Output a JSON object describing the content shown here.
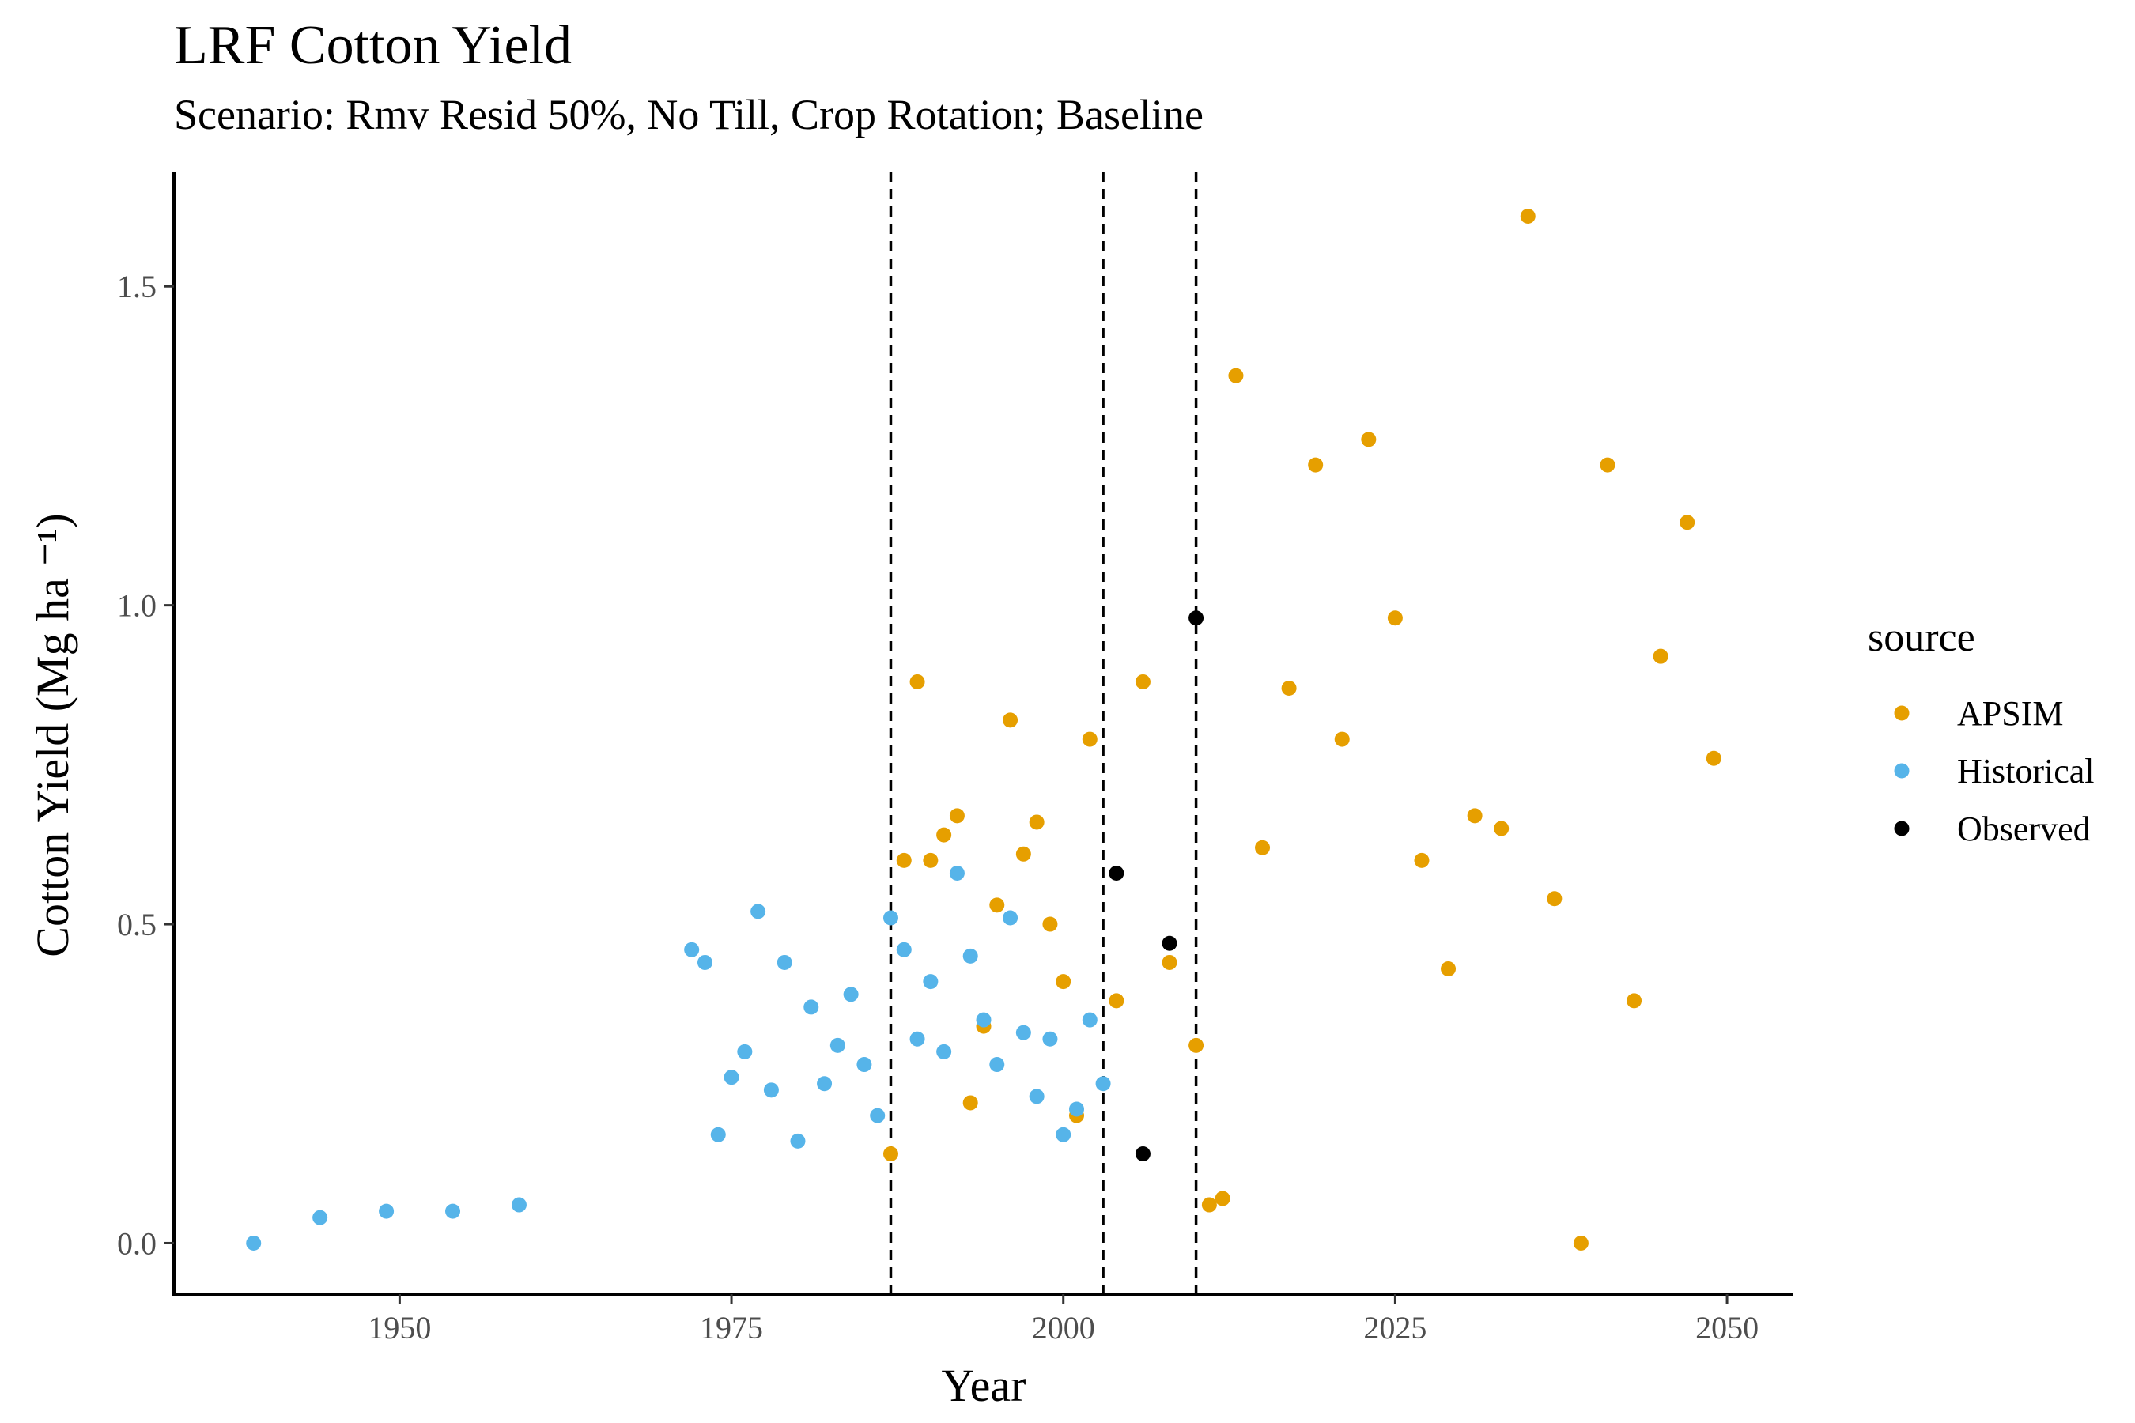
{
  "chart_data": {
    "type": "scatter",
    "title": "LRF Cotton Yield",
    "subtitle": "Scenario: Rmv Resid 50%, No Till, Crop Rotation; Baseline",
    "xlabel": "Year",
    "ylabel": "Cotton Yield (Mg ha ⁻¹)",
    "xlim": [
      1933,
      2055
    ],
    "ylim": [
      -0.08,
      1.68
    ],
    "x_ticks": [
      1950,
      1975,
      2000,
      2025,
      2050
    ],
    "y_ticks": [
      0.0,
      0.5,
      1.0,
      1.5
    ],
    "x_tick_labels": [
      "1950",
      "1975",
      "2000",
      "2025",
      "2050"
    ],
    "y_tick_labels": [
      "0.0",
      "0.5",
      "1.0",
      "1.5"
    ],
    "vlines": [
      1987,
      2003,
      2010
    ],
    "grid": false,
    "legend": {
      "title": "source",
      "position": "right"
    },
    "series": [
      {
        "name": "APSIM",
        "color": "#E69F00",
        "points": [
          [
            1987,
            0.14
          ],
          [
            1988,
            0.6
          ],
          [
            1989,
            0.88
          ],
          [
            1990,
            0.6
          ],
          [
            1991,
            0.64
          ],
          [
            1992,
            0.67
          ],
          [
            1993,
            0.22
          ],
          [
            1994,
            0.34
          ],
          [
            1995,
            0.53
          ],
          [
            1996,
            0.82
          ],
          [
            1997,
            0.61
          ],
          [
            1998,
            0.66
          ],
          [
            1999,
            0.5
          ],
          [
            2000,
            0.41
          ],
          [
            2001,
            0.2
          ],
          [
            2002,
            0.79
          ],
          [
            2004,
            0.38
          ],
          [
            2006,
            0.88
          ],
          [
            2008,
            0.44
          ],
          [
            2010,
            0.31
          ],
          [
            2011,
            0.06
          ],
          [
            2012,
            0.07
          ],
          [
            2013,
            1.36
          ],
          [
            2015,
            0.62
          ],
          [
            2017,
            0.87
          ],
          [
            2019,
            1.22
          ],
          [
            2021,
            0.79
          ],
          [
            2023,
            1.26
          ],
          [
            2025,
            0.98
          ],
          [
            2027,
            0.6
          ],
          [
            2029,
            0.43
          ],
          [
            2031,
            0.67
          ],
          [
            2033,
            0.65
          ],
          [
            2035,
            1.61
          ],
          [
            2037,
            0.54
          ],
          [
            2039,
            0.0
          ],
          [
            2041,
            1.22
          ],
          [
            2043,
            0.38
          ],
          [
            2045,
            0.92
          ],
          [
            2047,
            1.13
          ],
          [
            2049,
            0.76
          ]
        ]
      },
      {
        "name": "Historical",
        "color": "#56B4E9",
        "points": [
          [
            1939,
            0.0
          ],
          [
            1944,
            0.04
          ],
          [
            1949,
            0.05
          ],
          [
            1954,
            0.05
          ],
          [
            1959,
            0.06
          ],
          [
            1972,
            0.46
          ],
          [
            1973,
            0.44
          ],
          [
            1974,
            0.17
          ],
          [
            1975,
            0.26
          ],
          [
            1976,
            0.3
          ],
          [
            1977,
            0.52
          ],
          [
            1978,
            0.24
          ],
          [
            1979,
            0.44
          ],
          [
            1980,
            0.16
          ],
          [
            1981,
            0.37
          ],
          [
            1982,
            0.25
          ],
          [
            1983,
            0.31
          ],
          [
            1984,
            0.39
          ],
          [
            1985,
            0.28
          ],
          [
            1986,
            0.2
          ],
          [
            1987,
            0.51
          ],
          [
            1988,
            0.46
          ],
          [
            1989,
            0.32
          ],
          [
            1990,
            0.41
          ],
          [
            1991,
            0.3
          ],
          [
            1992,
            0.58
          ],
          [
            1993,
            0.45
          ],
          [
            1994,
            0.35
          ],
          [
            1995,
            0.28
          ],
          [
            1996,
            0.51
          ],
          [
            1997,
            0.33
          ],
          [
            1998,
            0.23
          ],
          [
            1999,
            0.32
          ],
          [
            2000,
            0.17
          ],
          [
            2001,
            0.21
          ],
          [
            2002,
            0.35
          ],
          [
            2003,
            0.25
          ]
        ]
      },
      {
        "name": "Observed",
        "color": "#000000",
        "points": [
          [
            2004,
            0.58
          ],
          [
            2006,
            0.14
          ],
          [
            2008,
            0.47
          ],
          [
            2010,
            0.98
          ]
        ]
      }
    ]
  }
}
